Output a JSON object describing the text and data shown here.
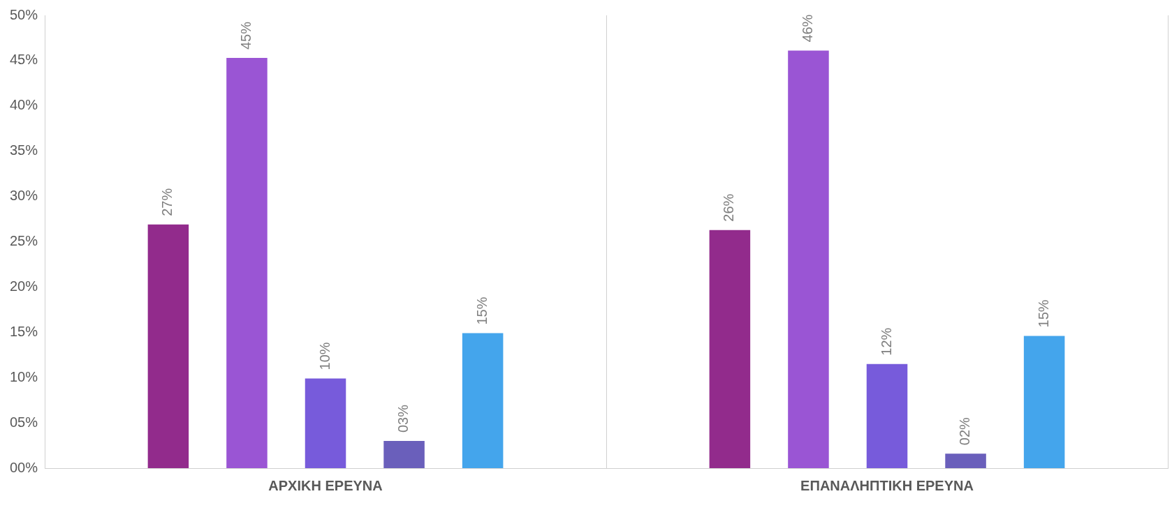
{
  "chart_data": {
    "type": "bar",
    "categories": [
      "ΑΡΧΙΚΗ ΕΡΕΥΝΑ",
      "ΕΠΑΝΑΛΗΠΤΙΚΗ ΕΡΕΥΝΑ"
    ],
    "series": [
      {
        "color": "#922b8c",
        "values": [
          26.9,
          26.3
        ],
        "value_labels": [
          "27%",
          "26%"
        ]
      },
      {
        "color": "#9a55d4",
        "values": [
          45.3,
          46.1
        ],
        "value_labels": [
          "45%",
          "46%"
        ]
      },
      {
        "color": "#775bdb",
        "values": [
          9.9,
          11.5
        ],
        "value_labels": [
          "10%",
          "12%"
        ]
      },
      {
        "color": "#6a5fbb",
        "values": [
          3.0,
          1.6
        ],
        "value_labels": [
          "03%",
          "02%"
        ]
      },
      {
        "color": "#44a5ec",
        "values": [
          14.9,
          14.6
        ],
        "value_labels": [
          "15%",
          "15%"
        ]
      }
    ],
    "ylim": [
      0,
      50
    ],
    "yticks": [
      {
        "value": 0,
        "label": "00%"
      },
      {
        "value": 5,
        "label": "05%"
      },
      {
        "value": 10,
        "label": "10%"
      },
      {
        "value": 15,
        "label": "15%"
      },
      {
        "value": 20,
        "label": "20%"
      },
      {
        "value": 25,
        "label": "25%"
      },
      {
        "value": 30,
        "label": "30%"
      },
      {
        "value": 35,
        "label": "35%"
      },
      {
        "value": 40,
        "label": "40%"
      },
      {
        "value": 45,
        "label": "45%"
      },
      {
        "value": 50,
        "label": "50%"
      }
    ],
    "grid": "x",
    "legend": false
  }
}
